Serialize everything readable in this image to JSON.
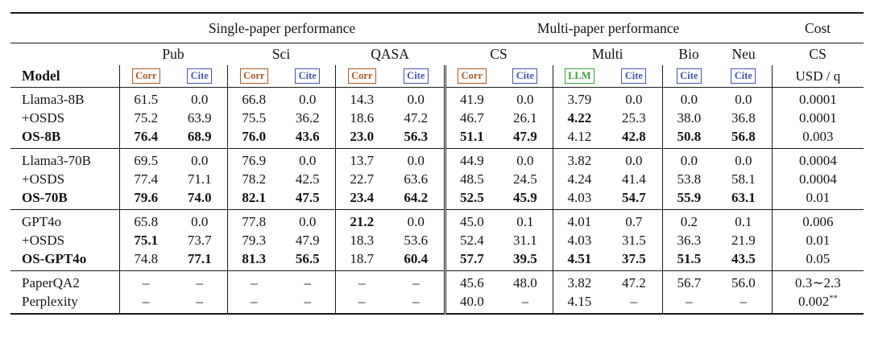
{
  "table": {
    "top_headers": [
      {
        "label": "Single-paper performance"
      },
      {
        "label": "Multi-paper performance"
      },
      {
        "label": "Cost"
      }
    ],
    "model_header": "Model",
    "column_groups": [
      {
        "label": "Pub",
        "badges": [
          {
            "label": "Corr",
            "type": "corr"
          },
          {
            "label": "Cite",
            "type": "cite"
          }
        ]
      },
      {
        "label": "Sci",
        "badges": [
          {
            "label": "Corr",
            "type": "corr"
          },
          {
            "label": "Cite",
            "type": "cite"
          }
        ]
      },
      {
        "label": "QASA",
        "badges": [
          {
            "label": "Corr",
            "type": "corr"
          },
          {
            "label": "Cite",
            "type": "cite"
          }
        ]
      },
      {
        "label": "CS",
        "badges": [
          {
            "label": "Corr",
            "type": "corr"
          },
          {
            "label": "Cite",
            "type": "cite"
          }
        ]
      },
      {
        "label": "Multi",
        "badges": [
          {
            "label": "LLM",
            "type": "llm"
          },
          {
            "label": "Cite",
            "type": "cite"
          }
        ]
      },
      {
        "label": "Bio",
        "badges": [
          {
            "label": "Cite",
            "type": "cite"
          }
        ]
      },
      {
        "label": "Neu",
        "badges": [
          {
            "label": "Cite",
            "type": "cite"
          }
        ]
      }
    ],
    "cost_header": {
      "line1": "CS",
      "line2": "USD / q"
    },
    "badge_colors": {
      "corr": "#ae5a21",
      "cite": "#4156b0",
      "llm": "#3aa43a"
    },
    "row_groups": [
      {
        "rows": [
          {
            "model": "Llama3-8B",
            "model_bold": false,
            "values": [
              "61.5",
              "0.0",
              "66.8",
              "0.0",
              "14.3",
              "0.0",
              "41.9",
              "0.0",
              "3.79",
              "0.0",
              "0.0",
              "0.0"
            ],
            "bold": [
              false,
              false,
              false,
              false,
              false,
              false,
              false,
              false,
              false,
              false,
              false,
              false
            ],
            "cost": "0.0001",
            "cost_sup": ""
          },
          {
            "model": "+OSDS",
            "model_bold": false,
            "values": [
              "75.2",
              "63.9",
              "75.5",
              "36.2",
              "18.6",
              "47.2",
              "46.7",
              "26.1",
              "4.22",
              "25.3",
              "38.0",
              "36.8"
            ],
            "bold": [
              false,
              false,
              false,
              false,
              false,
              false,
              false,
              false,
              true,
              false,
              false,
              false
            ],
            "cost": "0.0001",
            "cost_sup": ""
          },
          {
            "model": "OS-8B",
            "model_bold": true,
            "values": [
              "76.4",
              "68.9",
              "76.0",
              "43.6",
              "23.0",
              "56.3",
              "51.1",
              "47.9",
              "4.12",
              "42.8",
              "50.8",
              "56.8"
            ],
            "bold": [
              true,
              true,
              true,
              true,
              true,
              true,
              true,
              true,
              false,
              true,
              true,
              true
            ],
            "cost": "0.003",
            "cost_sup": ""
          }
        ]
      },
      {
        "rows": [
          {
            "model": "Llama3-70B",
            "model_bold": false,
            "values": [
              "69.5",
              "0.0",
              "76.9",
              "0.0",
              "13.7",
              "0.0",
              "44.9",
              "0.0",
              "3.82",
              "0.0",
              "0.0",
              "0.0"
            ],
            "bold": [
              false,
              false,
              false,
              false,
              false,
              false,
              false,
              false,
              false,
              false,
              false,
              false
            ],
            "cost": "0.0004",
            "cost_sup": ""
          },
          {
            "model": "+OSDS",
            "model_bold": false,
            "values": [
              "77.4",
              "71.1",
              "78.2",
              "42.5",
              "22.7",
              "63.6",
              "48.5",
              "24.5",
              "4.24",
              "41.4",
              "53.8",
              "58.1"
            ],
            "bold": [
              false,
              false,
              false,
              false,
              false,
              false,
              false,
              false,
              false,
              false,
              false,
              false
            ],
            "cost": "0.0004",
            "cost_sup": ""
          },
          {
            "model": "OS-70B",
            "model_bold": true,
            "values": [
              "79.6",
              "74.0",
              "82.1",
              "47.5",
              "23.4",
              "64.2",
              "52.5",
              "45.9",
              "4.03",
              "54.7",
              "55.9",
              "63.1"
            ],
            "bold": [
              true,
              true,
              true,
              true,
              true,
              true,
              true,
              true,
              false,
              true,
              true,
              true
            ],
            "cost": "0.01",
            "cost_sup": ""
          }
        ]
      },
      {
        "rows": [
          {
            "model": "GPT4o",
            "model_bold": false,
            "values": [
              "65.8",
              "0.0",
              "77.8",
              "0.0",
              "21.2",
              "0.0",
              "45.0",
              "0.1",
              "4.01",
              "0.7",
              "0.2",
              "0.1"
            ],
            "bold": [
              false,
              false,
              false,
              false,
              true,
              false,
              false,
              false,
              false,
              false,
              false,
              false
            ],
            "cost": "0.006",
            "cost_sup": ""
          },
          {
            "model": "+OSDS",
            "model_bold": false,
            "values": [
              "75.1",
              "73.7",
              "79.3",
              "47.9",
              "18.3",
              "53.6",
              "52.4",
              "31.1",
              "4.03",
              "31.5",
              "36.3",
              "21.9"
            ],
            "bold": [
              true,
              false,
              false,
              false,
              false,
              false,
              false,
              false,
              false,
              false,
              false,
              false
            ],
            "cost": "0.01",
            "cost_sup": ""
          },
          {
            "model": "OS-GPT4o",
            "model_bold": true,
            "values": [
              "74.8",
              "77.1",
              "81.3",
              "56.5",
              "18.7",
              "60.4",
              "57.7",
              "39.5",
              "4.51",
              "37.5",
              "51.5",
              "43.5"
            ],
            "bold": [
              false,
              true,
              true,
              true,
              false,
              true,
              true,
              true,
              true,
              true,
              true,
              true
            ],
            "cost": "0.05",
            "cost_sup": ""
          }
        ]
      },
      {
        "rows": [
          {
            "model": "PaperQA2",
            "model_bold": false,
            "values": [
              "–",
              "–",
              "–",
              "–",
              "–",
              "–",
              "45.6",
              "48.0",
              "3.82",
              "47.2",
              "56.7",
              "56.0"
            ],
            "bold": [
              false,
              false,
              false,
              false,
              false,
              false,
              false,
              false,
              false,
              false,
              false,
              false
            ],
            "cost": "0.3∼2.3",
            "cost_sup": ""
          },
          {
            "model": "Perplexity",
            "model_bold": false,
            "values": [
              "–",
              "–",
              "–",
              "–",
              "–",
              "–",
              "40.0",
              "–",
              "4.15",
              "–",
              "–",
              "–"
            ],
            "bold": [
              false,
              false,
              false,
              false,
              false,
              false,
              false,
              false,
              false,
              false,
              false,
              false
            ],
            "cost": "0.002",
            "cost_sup": "**"
          }
        ]
      }
    ]
  }
}
